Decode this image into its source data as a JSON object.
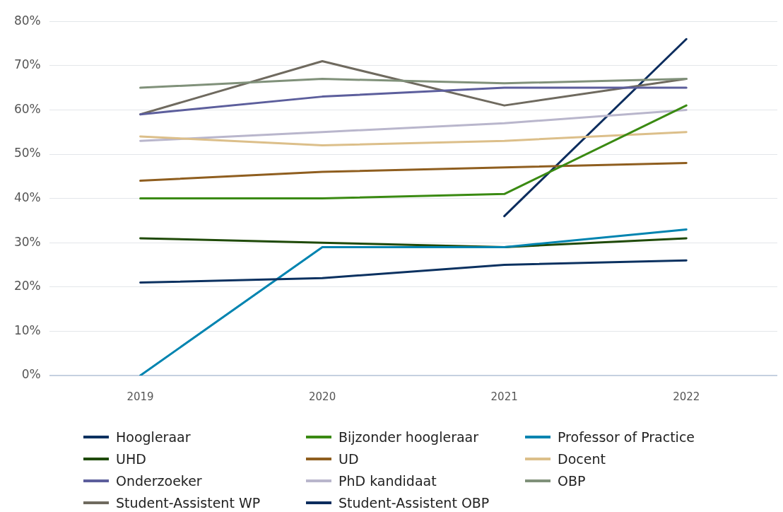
{
  "chart_data": {
    "type": "line",
    "categories": [
      "2019",
      "2020",
      "2021",
      "2022"
    ],
    "ylim": [
      0,
      80
    ],
    "yticks": [
      {
        "value": 0,
        "label": "0%"
      },
      {
        "value": 10,
        "label": "10%"
      },
      {
        "value": 20,
        "label": "20%"
      },
      {
        "value": 30,
        "label": "30%"
      },
      {
        "value": 40,
        "label": "40%"
      },
      {
        "value": 50,
        "label": "50%"
      },
      {
        "value": 60,
        "label": "60%"
      },
      {
        "value": 70,
        "label": "70%"
      },
      {
        "value": 80,
        "label": "80%"
      }
    ],
    "grid": "y",
    "legend": "bottom",
    "marker": "none",
    "line_style": "solid",
    "series": [
      {
        "name": "Hoogleraar",
        "color": "#0b3160",
        "values": [
          21,
          22,
          25,
          26
        ]
      },
      {
        "name": "Bijzonder hoogleraar",
        "color": "#3a8a12",
        "values": [
          40,
          40,
          41,
          61
        ]
      },
      {
        "name": "Professor of Practice",
        "color": "#0084b0",
        "values": [
          0,
          29,
          29,
          33
        ]
      },
      {
        "name": "UHD",
        "color": "#1f4a08",
        "values": [
          31,
          30,
          29,
          31
        ]
      },
      {
        "name": "UD",
        "color": "#8f5e1f",
        "values": [
          44,
          46,
          47,
          48
        ]
      },
      {
        "name": "Docent",
        "color": "#dcbf8a",
        "values": [
          54,
          52,
          53,
          55
        ]
      },
      {
        "name": "Onderzoeker",
        "color": "#5c5e9c",
        "values": [
          59,
          63,
          65,
          65
        ]
      },
      {
        "name": "PhD kandidaat",
        "color": "#b9b6cc",
        "values": [
          53,
          55,
          57,
          60
        ]
      },
      {
        "name": "OBP",
        "color": "#80917a",
        "values": [
          65,
          67,
          66,
          67
        ]
      },
      {
        "name": "Student-Assistent WP",
        "color": "#6f6a5f",
        "values": [
          59,
          71,
          61,
          67
        ]
      },
      {
        "name": "Student-Assistent OBP",
        "color": "#0c2d5e",
        "values": [
          null,
          null,
          36,
          76
        ]
      }
    ]
  }
}
